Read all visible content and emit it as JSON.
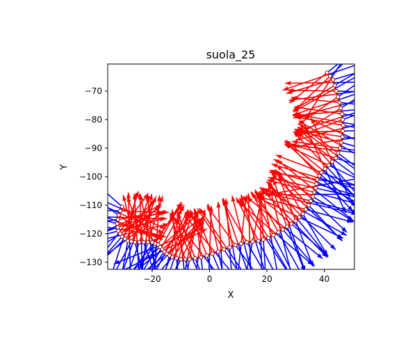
{
  "chart_data": {
    "type": "vector-field",
    "title": "suola_25",
    "xlabel": "X",
    "ylabel": "Y",
    "xlim": [
      -35.5,
      50.5
    ],
    "ylim": [
      -132.5,
      -60.5
    ],
    "xticks": [
      -20,
      0,
      20,
      40
    ],
    "yticks": [
      -130,
      -120,
      -110,
      -100,
      -90,
      -80,
      -70
    ],
    "grid": false,
    "colors": {
      "normal_a": "#ff0000",
      "normal_b": "#0000ff",
      "contour": "#8b0000",
      "marker_face": "#ffffff"
    },
    "contour_points": [
      [
        41.0,
        -63.5
      ],
      [
        43.0,
        -66.0
      ],
      [
        44.2,
        -70.0
      ],
      [
        45.3,
        -74.0
      ],
      [
        46.2,
        -78.0
      ],
      [
        46.6,
        -82.0
      ],
      [
        46.3,
        -86.0
      ],
      [
        45.5,
        -90.0
      ],
      [
        44.0,
        -93.5
      ],
      [
        41.5,
        -96.0
      ],
      [
        39.0,
        -98.5
      ],
      [
        37.5,
        -101.0
      ],
      [
        37.0,
        -104.0
      ],
      [
        36.0,
        -107.0
      ],
      [
        34.5,
        -110.0
      ],
      [
        32.5,
        -113.0
      ],
      [
        30.0,
        -115.5
      ],
      [
        27.0,
        -117.5
      ],
      [
        24.0,
        -119.5
      ],
      [
        20.5,
        -121.5
      ],
      [
        17.0,
        -122.5
      ],
      [
        13.0,
        -123.0
      ],
      [
        9.0,
        -124.0
      ],
      [
        5.0,
        -125.5
      ],
      [
        1.0,
        -127.0
      ],
      [
        -3.0,
        -128.3
      ],
      [
        -7.0,
        -129.0
      ],
      [
        -10.0,
        -129.0
      ],
      [
        -13.0,
        -128.2
      ],
      [
        -15.0,
        -127.0
      ],
      [
        -16.5,
        -125.5
      ],
      [
        -18.0,
        -123.8
      ],
      [
        -20.0,
        -123.0
      ],
      [
        -23.0,
        -123.0
      ],
      [
        -26.0,
        -123.0
      ],
      [
        -28.5,
        -122.5
      ],
      [
        -30.5,
        -121.0
      ],
      [
        -31.8,
        -119.0
      ],
      [
        -32.2,
        -116.5
      ],
      [
        -31.7,
        -113.5
      ],
      [
        -30.5,
        -110.5
      ]
    ],
    "vector_groups": [
      {
        "color": "red",
        "base_from": 0.0,
        "base_to": 1.0,
        "angles_from": -30,
        "angles_to": 60
      },
      {
        "color": "blue",
        "base_from": 0.0,
        "base_to": 1.0,
        "angles_from": -90,
        "angles_to": 0
      }
    ]
  }
}
